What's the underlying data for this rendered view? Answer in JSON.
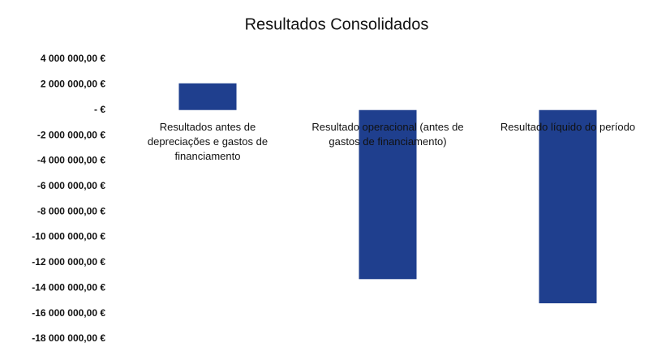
{
  "chart_data": {
    "type": "bar",
    "title": "Resultados Consolidados",
    "categories": [
      "Resultados antes de depreciações e gastos de financiamento",
      "Resultado operacional (antes de gastos de financiamento)",
      "Resultado líquido do período"
    ],
    "values": [
      2100000,
      -13300000,
      -15200000
    ],
    "color": "#1f3f8e",
    "ylim": [
      -18000000,
      4000000
    ],
    "yticks": [
      {
        "value": 4000000,
        "label": "4 000 000,00 €"
      },
      {
        "value": 2000000,
        "label": "2 000 000,00 €"
      },
      {
        "value": 0,
        "label": "- €"
      },
      {
        "value": -2000000,
        "label": "-2 000 000,00 €"
      },
      {
        "value": -4000000,
        "label": "-4 000 000,00 €"
      },
      {
        "value": -6000000,
        "label": "-6 000 000,00 €"
      },
      {
        "value": -8000000,
        "label": "-8 000 000,00 €"
      },
      {
        "value": -10000000,
        "label": "-10 000 000,00 €"
      },
      {
        "value": -12000000,
        "label": "-12 000 000,00 €"
      },
      {
        "value": -14000000,
        "label": "-14 000 000,00 €"
      },
      {
        "value": -16000000,
        "label": "-16 000 000,00 €"
      },
      {
        "value": -18000000,
        "label": "-18 000 000,00 €"
      }
    ],
    "grid": false
  }
}
